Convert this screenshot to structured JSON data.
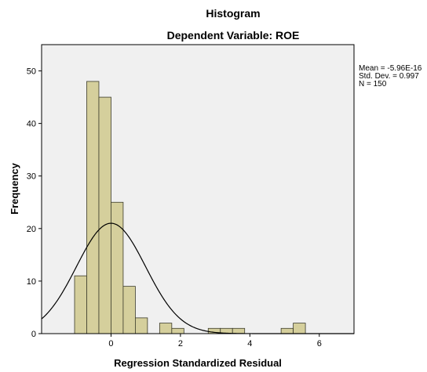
{
  "chart_data": {
    "type": "bar",
    "subtype": "histogram",
    "title": "Histogram",
    "subtitle": "Dependent Variable: ROE",
    "xlabel": "Regression Standardized Residual",
    "ylabel": "Frequency",
    "xlim": [
      -2.0,
      7.0
    ],
    "ylim": [
      0,
      55
    ],
    "xticks": [
      0,
      2,
      4,
      6
    ],
    "xtick_labels": [
      "0",
      "2",
      "4",
      "6"
    ],
    "yticks": [
      0,
      10,
      20,
      30,
      40,
      50
    ],
    "ytick_labels": [
      "0",
      "10",
      "20",
      "30",
      "40",
      "50"
    ],
    "bin_width": 0.35,
    "bins": [
      {
        "x0": -1.05,
        "x1": -0.7,
        "count": 11
      },
      {
        "x0": -0.7,
        "x1": -0.35,
        "count": 48
      },
      {
        "x0": -0.35,
        "x1": 0.0,
        "count": 45
      },
      {
        "x0": 0.0,
        "x1": 0.35,
        "count": 25
      },
      {
        "x0": 0.35,
        "x1": 0.7,
        "count": 9
      },
      {
        "x0": 0.7,
        "x1": 1.05,
        "count": 3
      },
      {
        "x0": 1.05,
        "x1": 1.4,
        "count": 0
      },
      {
        "x0": 1.4,
        "x1": 1.75,
        "count": 2
      },
      {
        "x0": 1.75,
        "x1": 2.1,
        "count": 1
      },
      {
        "x0": 2.1,
        "x1": 2.45,
        "count": 0
      },
      {
        "x0": 2.45,
        "x1": 2.8,
        "count": 0
      },
      {
        "x0": 2.8,
        "x1": 3.15,
        "count": 1
      },
      {
        "x0": 3.15,
        "x1": 3.5,
        "count": 1
      },
      {
        "x0": 3.5,
        "x1": 3.85,
        "count": 1
      },
      {
        "x0": 3.85,
        "x1": 4.2,
        "count": 0
      },
      {
        "x0": 4.2,
        "x1": 4.55,
        "count": 0
      },
      {
        "x0": 4.55,
        "x1": 4.9,
        "count": 0
      },
      {
        "x0": 4.9,
        "x1": 5.25,
        "count": 1
      },
      {
        "x0": 5.25,
        "x1": 5.6,
        "count": 2
      }
    ],
    "normal_curve": {
      "mean": -5.96e-16,
      "std": 0.997,
      "n": 150
    },
    "stats": {
      "mean": "Mean = -5.96E-16",
      "std": "Std. Dev. = 0.997",
      "n": "N = 150"
    },
    "grid": false,
    "colors": {
      "bar_fill": "#d5cf9c",
      "bar_stroke": "#3a3a2a",
      "plot_bg": "#f0f0f0",
      "curve": "#000000",
      "frame": "#000000"
    }
  }
}
